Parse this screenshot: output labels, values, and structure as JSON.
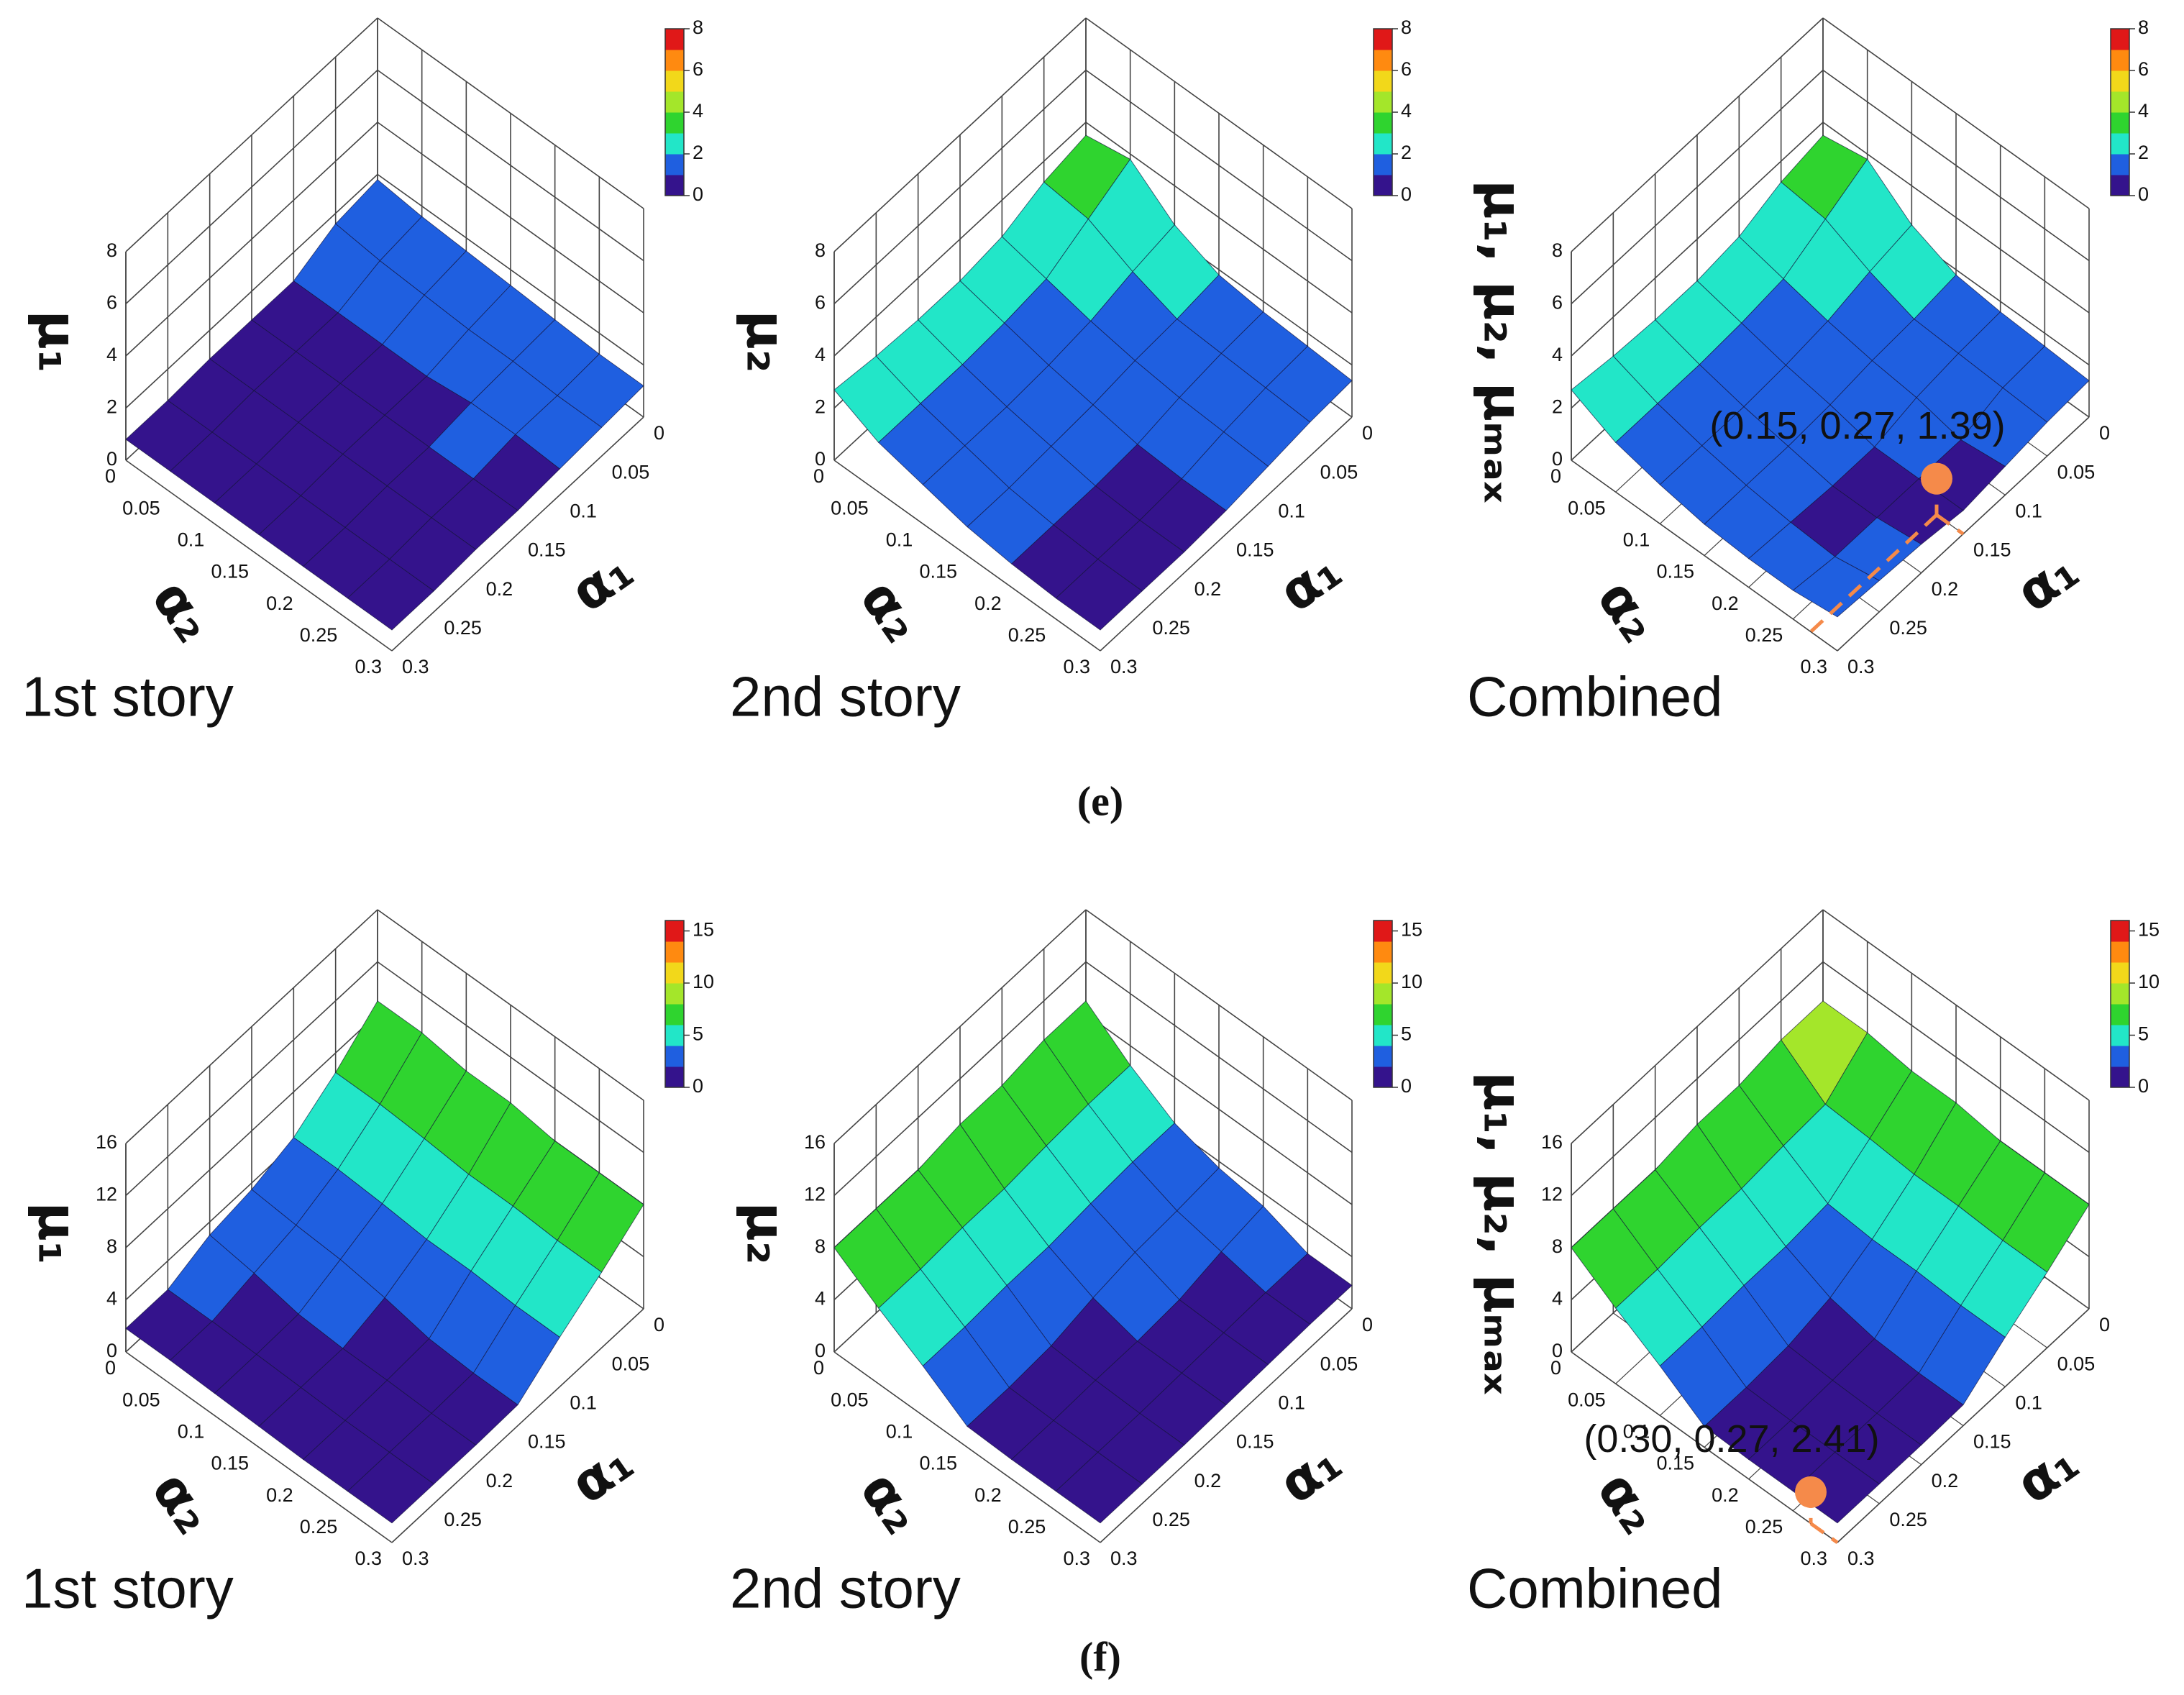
{
  "chart_data": [
    {
      "type": "surface3d",
      "caption": "1st story",
      "zlabel": "μ₁",
      "xlabel": "α₁",
      "ylabel": "α₂",
      "x": [
        0,
        0.05,
        0.1,
        0.15,
        0.2,
        0.25,
        0.3
      ],
      "y": [
        0,
        0.05,
        0.1,
        0.15,
        0.2,
        0.25,
        0.3
      ],
      "z": [
        [
          1.8,
          1.6,
          1.5,
          1.4,
          1.3,
          1.2,
          1.2
        ],
        [
          1.6,
          1.4,
          1.3,
          1.2,
          1.2,
          1.1,
          1.1
        ],
        [
          0.9,
          0.9,
          0.9,
          0.9,
          1.1,
          1.1,
          1.0
        ],
        [
          0.9,
          0.9,
          0.9,
          0.9,
          0.9,
          0.9,
          0.9
        ],
        [
          0.9,
          0.9,
          0.9,
          0.9,
          0.9,
          0.9,
          0.9
        ],
        [
          0.8,
          0.8,
          0.8,
          0.8,
          0.8,
          0.8,
          0.8
        ],
        [
          0.8,
          0.8,
          0.8,
          0.8,
          0.8,
          0.8,
          0.8
        ]
      ],
      "xlim": [
        0,
        0.3
      ],
      "ylim": [
        0,
        0.3
      ],
      "xticks": [
        0,
        0.05,
        0.1,
        0.15,
        0.2,
        0.25,
        0.3
      ],
      "yticks": [
        0,
        0.05,
        0.1,
        0.15,
        0.2,
        0.25,
        0.3
      ],
      "zlim": [
        0,
        8
      ],
      "zticks": [
        0,
        2,
        4,
        6,
        8
      ],
      "clim": [
        0,
        8
      ],
      "colorbar_ticks": [
        0,
        2,
        4,
        6,
        8
      ],
      "colors": [
        "#34138c",
        "#1f5fe0",
        "#22e6c8",
        "#2fd42f",
        "#a4e62a",
        "#f2d81a",
        "#ff8a10",
        "#e01818"
      ],
      "floor_grid": false
    },
    {
      "type": "surface3d",
      "caption": "2nd story",
      "zlabel": "μ₂",
      "xlabel": "α₁",
      "ylabel": "α₂",
      "x": [
        0,
        0.05,
        0.1,
        0.15,
        0.2,
        0.25,
        0.3
      ],
      "y": [
        0,
        0.05,
        0.1,
        0.15,
        0.2,
        0.25,
        0.3
      ],
      "z": [
        [
          3.5,
          3.8,
          2.5,
          1.8,
          1.6,
          1.5,
          1.4
        ],
        [
          3.2,
          3.0,
          2.2,
          1.6,
          1.5,
          1.4,
          1.3
        ],
        [
          2.6,
          2.2,
          1.8,
          1.5,
          1.3,
          1.2,
          1.1
        ],
        [
          2.4,
          2.0,
          1.6,
          1.3,
          1.0,
          0.9,
          0.9
        ],
        [
          2.4,
          1.9,
          1.5,
          1.2,
          0.9,
          0.8,
          0.8
        ],
        [
          2.5,
          1.9,
          1.5,
          1.1,
          0.9,
          0.8,
          0.8
        ],
        [
          2.7,
          1.9,
          1.5,
          1.1,
          0.9,
          0.8,
          0.8
        ]
      ],
      "xlim": [
        0,
        0.3
      ],
      "ylim": [
        0,
        0.3
      ],
      "xticks": [
        0,
        0.05,
        0.1,
        0.15,
        0.2,
        0.25,
        0.3
      ],
      "yticks": [
        0,
        0.05,
        0.1,
        0.15,
        0.2,
        0.25,
        0.3
      ],
      "zlim": [
        0,
        8
      ],
      "zticks": [
        0,
        2,
        4,
        6,
        8
      ],
      "clim": [
        0,
        8
      ],
      "colorbar_ticks": [
        0,
        2,
        4,
        6,
        8
      ],
      "colors": [
        "#34138c",
        "#1f5fe0",
        "#22e6c8",
        "#2fd42f",
        "#a4e62a",
        "#f2d81a",
        "#ff8a10",
        "#e01818"
      ],
      "floor_grid": false
    },
    {
      "type": "surface3d",
      "caption": "Combined",
      "zlabel": "μ₁, μ₂, μₘₐₓ",
      "xlabel": "α₁",
      "ylabel": "α₂",
      "x": [
        0,
        0.05,
        0.1,
        0.15,
        0.2,
        0.25,
        0.3
      ],
      "y": [
        0,
        0.05,
        0.1,
        0.15,
        0.2,
        0.25,
        0.3
      ],
      "z": [
        [
          3.5,
          3.8,
          2.5,
          1.8,
          1.6,
          1.5,
          1.4
        ],
        [
          3.2,
          3.0,
          2.2,
          1.6,
          1.5,
          1.4,
          1.3
        ],
        [
          2.6,
          2.2,
          1.8,
          1.5,
          1.3,
          0.9,
          1.1
        ],
        [
          2.4,
          2.0,
          1.6,
          1.3,
          0.9,
          0.9,
          0.9
        ],
        [
          2.4,
          1.9,
          1.5,
          1.2,
          0.9,
          0.9,
          1.1
        ],
        [
          2.5,
          1.9,
          1.5,
          1.2,
          1.0,
          0.9,
          1.2
        ],
        [
          2.7,
          1.9,
          1.5,
          1.2,
          1.1,
          1.1,
          1.3
        ]
      ],
      "xlim": [
        0,
        0.3
      ],
      "ylim": [
        0,
        0.3
      ],
      "xticks": [
        0,
        0.05,
        0.1,
        0.15,
        0.2,
        0.25,
        0.3
      ],
      "yticks": [
        0,
        0.05,
        0.1,
        0.15,
        0.2,
        0.25,
        0.3
      ],
      "zlim": [
        0,
        8
      ],
      "zticks": [
        0,
        2,
        4,
        6,
        8
      ],
      "clim": [
        0,
        8
      ],
      "colorbar_ticks": [
        0,
        2,
        4,
        6,
        8
      ],
      "colors": [
        "#34138c",
        "#1f5fe0",
        "#22e6c8",
        "#2fd42f",
        "#a4e62a",
        "#f2d81a",
        "#ff8a10",
        "#e01818"
      ],
      "floor_grid": true,
      "annotation": {
        "text": "(0.15, 0.27, 1.39)",
        "x": 0.15,
        "y": 0.27,
        "z": 1.39,
        "color": "#f58a4a"
      }
    },
    {
      "type": "surface3d",
      "caption": "1st story",
      "zlabel": "μ₁",
      "xlabel": "α₁",
      "ylabel": "α₂",
      "x": [
        0,
        0.05,
        0.1,
        0.15,
        0.2,
        0.25,
        0.3
      ],
      "y": [
        0,
        0.05,
        0.1,
        0.15,
        0.2,
        0.25,
        0.3
      ],
      "z": [
        [
          9,
          9,
          8.5,
          8.5,
          8,
          8,
          8
        ],
        [
          6.5,
          6.5,
          6.3,
          6,
          6,
          5.8,
          5.8
        ],
        [
          4.5,
          4.5,
          4.3,
          4,
          4,
          3.8,
          3.8
        ],
        [
          3.5,
          3.2,
          3,
          2.5,
          1.8,
          1.6,
          1.6
        ],
        [
          3,
          2.5,
          1.8,
          1.6,
          1.6,
          1.5,
          1.5
        ],
        [
          1.8,
          1.8,
          1.7,
          1.6,
          1.5,
          1.5,
          1.5
        ],
        [
          1.8,
          1.8,
          1.7,
          1.6,
          1.5,
          1.5,
          1.5
        ]
      ],
      "xlim": [
        0,
        0.3
      ],
      "ylim": [
        0,
        0.3
      ],
      "xticks": [
        0,
        0.05,
        0.1,
        0.15,
        0.2,
        0.25,
        0.3
      ],
      "yticks": [
        0,
        0.05,
        0.1,
        0.15,
        0.2,
        0.25,
        0.3
      ],
      "zlim": [
        0,
        16
      ],
      "zticks": [
        0,
        4,
        8,
        12,
        16
      ],
      "clim": [
        0,
        16
      ],
      "colorbar_ticks": [
        0,
        5,
        10,
        15
      ],
      "colors": [
        "#34138c",
        "#1f5fe0",
        "#22e6c8",
        "#2fd42f",
        "#a4e62a",
        "#f2d81a",
        "#ff8a10",
        "#e01818"
      ],
      "floor_grid": false
    },
    {
      "type": "surface3d",
      "caption": "2nd story",
      "zlabel": "μ₂",
      "xlabel": "α₁",
      "ylabel": "α₂",
      "x": [
        0,
        0.05,
        0.1,
        0.15,
        0.2,
        0.25,
        0.3
      ],
      "y": [
        0,
        0.05,
        0.1,
        0.15,
        0.2,
        0.25,
        0.3
      ],
      "z": [
        [
          9,
          6.5,
          4.5,
          3.5,
          3,
          1.8,
          1.8
        ],
        [
          9,
          6.5,
          4.5,
          3.2,
          2.5,
          1.8,
          1.8
        ],
        [
          8.5,
          6.3,
          4.3,
          3,
          1.8,
          1.7,
          1.7
        ],
        [
          8.5,
          6,
          4,
          2.5,
          1.6,
          1.6,
          1.6
        ],
        [
          8,
          6,
          4,
          1.8,
          1.6,
          1.5,
          1.5
        ],
        [
          8,
          5.8,
          3.8,
          1.6,
          1.5,
          1.5,
          1.5
        ],
        [
          8,
          5.8,
          3.8,
          1.6,
          1.5,
          1.5,
          1.5
        ]
      ],
      "xlim": [
        0,
        0.3
      ],
      "ylim": [
        0,
        0.3
      ],
      "xticks": [
        0,
        0.05,
        0.1,
        0.15,
        0.2,
        0.25,
        0.3
      ],
      "yticks": [
        0,
        0.05,
        0.1,
        0.15,
        0.2,
        0.25,
        0.3
      ],
      "zlim": [
        0,
        16
      ],
      "zticks": [
        0,
        4,
        8,
        12,
        16
      ],
      "clim": [
        0,
        16
      ],
      "colorbar_ticks": [
        0,
        5,
        10,
        15
      ],
      "colors": [
        "#34138c",
        "#1f5fe0",
        "#22e6c8",
        "#2fd42f",
        "#a4e62a",
        "#f2d81a",
        "#ff8a10",
        "#e01818"
      ],
      "floor_grid": false
    },
    {
      "type": "surface3d",
      "caption": "Combined",
      "zlabel": "μ₁, μ₂, μₘₐₓ",
      "xlabel": "α₁",
      "ylabel": "α₂",
      "x": [
        0,
        0.05,
        0.1,
        0.15,
        0.2,
        0.25,
        0.3
      ],
      "y": [
        0,
        0.05,
        0.1,
        0.15,
        0.2,
        0.25,
        0.3
      ],
      "z": [
        [
          9,
          9,
          8.5,
          8.5,
          8,
          8,
          8
        ],
        [
          9,
          6.5,
          6.3,
          6,
          6,
          5.8,
          5.8
        ],
        [
          8.5,
          6.3,
          4.3,
          4,
          4,
          3.8,
          3.8
        ],
        [
          8.5,
          6,
          4,
          2.5,
          1.8,
          1.6,
          1.6
        ],
        [
          8,
          6,
          4,
          1.8,
          1.6,
          1.5,
          1.5
        ],
        [
          8,
          5.8,
          3.8,
          1.6,
          1.5,
          1.5,
          1.5
        ],
        [
          8,
          5.8,
          3.8,
          1.6,
          1.5,
          1.5,
          1.5
        ]
      ],
      "xlim": [
        0,
        0.3
      ],
      "ylim": [
        0,
        0.3
      ],
      "xticks": [
        0,
        0.05,
        0.1,
        0.15,
        0.2,
        0.25,
        0.3
      ],
      "yticks": [
        0,
        0.05,
        0.1,
        0.15,
        0.2,
        0.25,
        0.3
      ],
      "zlim": [
        0,
        16
      ],
      "zticks": [
        0,
        4,
        8,
        12,
        16
      ],
      "clim": [
        0,
        16
      ],
      "colorbar_ticks": [
        0,
        5,
        10,
        15
      ],
      "colors": [
        "#34138c",
        "#1f5fe0",
        "#22e6c8",
        "#2fd42f",
        "#a4e62a",
        "#f2d81a",
        "#ff8a10",
        "#e01818"
      ],
      "floor_grid": true,
      "annotation": {
        "text": "(0.30, 0.27, 2.41)",
        "x": 0.3,
        "y": 0.27,
        "z": 2.41,
        "color": "#f58a4a"
      }
    }
  ],
  "panel_labels": [
    "(e)",
    "(f)"
  ]
}
